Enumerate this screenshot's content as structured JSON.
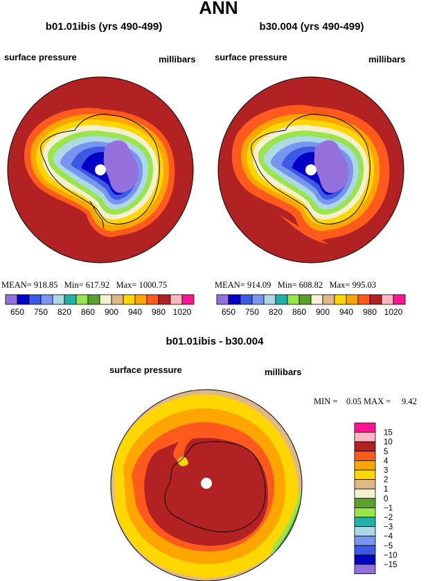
{
  "figure": {
    "title": "ANN"
  },
  "panels": [
    {
      "title": "b01.01ibis (yrs 490-499)",
      "variable": "surface pressure",
      "units": "millibars",
      "stats": {
        "mean_label": "MEAN=",
        "mean": "918.85",
        "min_label": "Min=",
        "min": "617.92",
        "max_label": "Max=",
        "max": "1000.75"
      }
    },
    {
      "title": "b30.004 (yrs 490-499)",
      "variable": "surface pressure",
      "units": "millibars",
      "stats": {
        "mean_label": "MEAN=",
        "mean": "914.09",
        "min_label": "Min=",
        "min": "608.82",
        "max_label": "Max=",
        "max": "995.03"
      }
    }
  ],
  "abs_colorbar": {
    "colors": [
      "#9370db",
      "#0000c8",
      "#3c5ae6",
      "#7896f0",
      "#add8e6",
      "#20b2aa",
      "#98e64b",
      "#5aa02d",
      "#f5f0d2",
      "#deb887",
      "#ffd700",
      "#ffa500",
      "#ff5a1e",
      "#b22222",
      "#ffb6c1",
      "#ff1493"
    ],
    "labels": [
      "650",
      "750",
      "820",
      "860",
      "900",
      "940",
      "980",
      "1020"
    ]
  },
  "diff": {
    "title": "b01.01ibis - b30.004",
    "variable": "surface pressure",
    "units": "millibars",
    "stats": {
      "min_label": "MIN =",
      "min": "0.05",
      "max_label": "MAX =",
      "max": "9.42"
    }
  },
  "diff_colorbar": {
    "colors": [
      "#ff1493",
      "#ffb6c1",
      "#b22222",
      "#ff5a1e",
      "#ffa500",
      "#ffd700",
      "#deb887",
      "#f5f0d2",
      "#5aa02d",
      "#98e64b",
      "#20b2aa",
      "#add8e6",
      "#7896f0",
      "#3c5ae6",
      "#0000c8",
      "#9370db"
    ],
    "labels": [
      "15",
      "10",
      "5",
      "4",
      "3",
      "2",
      "1",
      "0",
      "−1",
      "−2",
      "−3",
      "−4",
      "−5",
      "−10",
      "−15"
    ]
  }
}
